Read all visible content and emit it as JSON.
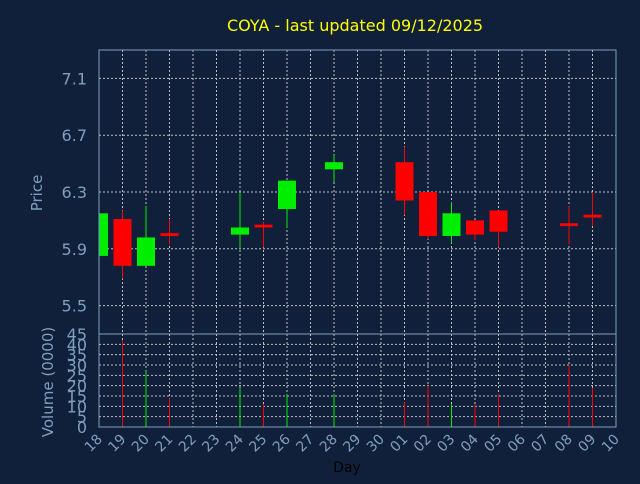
{
  "chart_data": {
    "type": "candlestick",
    "title": "COYA - last updated 09/12/2025",
    "xlabel": "Day",
    "price_panel": {
      "ylabel": "Price",
      "yticks": [
        5.5,
        5.9,
        6.3,
        6.7,
        7.1
      ],
      "ylim": [
        5.3,
        7.3
      ]
    },
    "volume_panel": {
      "ylabel": "Volume (0000)",
      "yticks": [
        0,
        5,
        10,
        15,
        20,
        25,
        30,
        35,
        40,
        45
      ],
      "ylim": [
        0,
        45
      ]
    },
    "x_ticks": [
      "18",
      "19",
      "20",
      "21",
      "22",
      "23",
      "24",
      "25",
      "26",
      "27",
      "28",
      "29",
      "30",
      "01",
      "02",
      "03",
      "04",
      "05",
      "06",
      "07",
      "08",
      "09",
      "10"
    ],
    "grid": true,
    "colors": {
      "background": "#10203a",
      "title": "#ffff00",
      "axis_text": "#7f9fbf",
      "grid": "#c0c0c0",
      "up": "#00ee00",
      "down": "#ff0000"
    },
    "candles": [
      {
        "day": "18",
        "open": 5.85,
        "high": 6.15,
        "low": 5.85,
        "close": 6.15,
        "volume": 0
      },
      {
        "day": "19",
        "open": 6.11,
        "high": 6.17,
        "low": 5.69,
        "close": 5.78,
        "volume": 42
      },
      {
        "day": "20",
        "open": 5.78,
        "high": 6.2,
        "low": 5.78,
        "close": 5.98,
        "volume": 27
      },
      {
        "day": "21",
        "open": 6.01,
        "high": 6.11,
        "low": 5.93,
        "close": 5.99,
        "volume": 14
      },
      {
        "day": "24",
        "open": 6.0,
        "high": 6.3,
        "low": 5.9,
        "close": 6.05,
        "volume": 19
      },
      {
        "day": "25",
        "open": 6.07,
        "high": 6.09,
        "low": 5.91,
        "close": 6.05,
        "volume": 11
      },
      {
        "day": "26",
        "open": 6.18,
        "high": 6.38,
        "low": 6.05,
        "close": 6.38,
        "volume": 16
      },
      {
        "day": "28",
        "open": 6.46,
        "high": 6.56,
        "low": 6.37,
        "close": 6.51,
        "volume": 16
      },
      {
        "day": "01",
        "open": 6.51,
        "high": 6.62,
        "low": 6.14,
        "close": 6.24,
        "volume": 12
      },
      {
        "day": "02",
        "open": 6.3,
        "high": 6.3,
        "low": 5.97,
        "close": 5.99,
        "volume": 20
      },
      {
        "day": "03",
        "open": 5.99,
        "high": 6.23,
        "low": 5.94,
        "close": 6.15,
        "volume": 11
      },
      {
        "day": "04",
        "open": 6.1,
        "high": 6.1,
        "low": 5.96,
        "close": 6.0,
        "volume": 11
      },
      {
        "day": "05",
        "open": 6.17,
        "high": 6.17,
        "low": 5.91,
        "close": 6.02,
        "volume": 16
      },
      {
        "day": "08",
        "open": 6.08,
        "high": 6.2,
        "low": 5.93,
        "close": 6.06,
        "volume": 30
      },
      {
        "day": "09",
        "open": 6.14,
        "high": 6.3,
        "low": 6.06,
        "close": 6.12,
        "volume": 19
      }
    ]
  }
}
